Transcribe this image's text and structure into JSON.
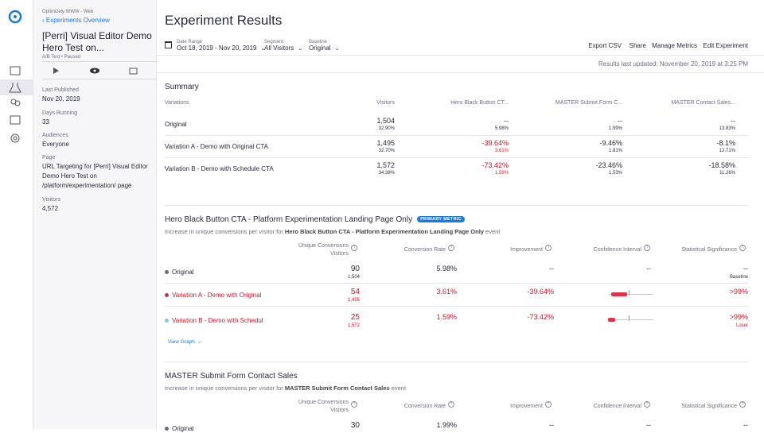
{
  "details": {
    "project": "Optimizely WWW - Web",
    "back_link": "Experiments Overview",
    "title": "[Perri] Visual Editor Demo Hero Test on...",
    "meta": "A/B Test • Paused",
    "fields": [
      {
        "label": "Last Published",
        "value": "Nov 20, 2019"
      },
      {
        "label": "Days Running",
        "value": "33"
      },
      {
        "label": "Audiences",
        "value": "Everyone"
      },
      {
        "label": "Page",
        "value": "URL Targeting for [Perri] Visual Editor Demo Hero Test on /platform/experimentation/ page"
      },
      {
        "label": "Visitors",
        "value": "4,572"
      }
    ]
  },
  "header": {
    "title": "Experiment Results",
    "filters": [
      {
        "label": "Date Range",
        "value": "Oct 18, 2019 - Nov 20, 2019"
      },
      {
        "label": "Segment",
        "value": "All Visitors"
      },
      {
        "label": "Baseline",
        "value": "Original"
      }
    ],
    "actions": [
      "Export CSV",
      "Share",
      "Manage Metrics",
      "Edit Experiment"
    ],
    "updated": "Results last updated: November 20, 2019 at 3:25 PM"
  },
  "summary": {
    "title": "Summary",
    "columns": [
      "Variations",
      "Visitors",
      "Hero Black Button CT...",
      "MASTER Submit Form C...",
      "MASTER Contact Sales..."
    ],
    "rows": [
      {
        "name": "Original",
        "visitors": "1,504",
        "share": "32.90%",
        "metrics": [
          {
            "value": "--",
            "rate": "5.98%"
          },
          {
            "value": "--",
            "rate": "1.99%"
          },
          {
            "value": "--",
            "rate": "13.83%"
          }
        ]
      },
      {
        "name": "Variation A - Demo with Original CTA",
        "visitors": "1,495",
        "share": "32.70%",
        "metrics": [
          {
            "value": "-39.64%",
            "rate": "3.61%"
          },
          {
            "value": "-9.46%",
            "rate": "1.81%"
          },
          {
            "value": "-8.1%",
            "rate": "12.71%"
          }
        ]
      },
      {
        "name": "Variation B - Demo with Schedule CTA",
        "visitors": "1,572",
        "share": "34.38%",
        "metrics": [
          {
            "value": "-73.42%",
            "rate": "1.59%"
          },
          {
            "value": "-23.46%",
            "rate": "1.53%"
          },
          {
            "value": "-18.58%",
            "rate": "11.26%"
          }
        ]
      }
    ]
  },
  "metrics": [
    {
      "title": "Hero Black Button CTA - Platform Experimentation Landing Page Only",
      "badge": "PRIMARY METRIC",
      "description": {
        "prefix": "Increase in unique conversions per visitor for",
        "metric": "Hero Black Button CTA - Platform Experimentation Landing Page Only",
        "suffix": "event"
      },
      "columns": [
        {
          "label": "Unique Conversions",
          "sub": "Visitors"
        },
        {
          "label": "Conversion Rate"
        },
        {
          "label": "Improvement"
        },
        {
          "label": "Confidence Interval"
        },
        {
          "label": "Statistical Significance"
        }
      ],
      "rows": [
        {
          "name": "Original",
          "color": "#6b6b80",
          "conversions": "90",
          "visitors": "1,504",
          "rate": "5.98%",
          "improvement": "--",
          "interval": "--",
          "significance": "--",
          "note": "Baseline"
        },
        {
          "name": "Variation A - Demo with Original",
          "color": "#d6285a",
          "conversions": "54",
          "visitors": "1,495",
          "rate": "3.61%",
          "improvement": "-39.64%",
          "significance": ">99%"
        },
        {
          "name": "Variation B - Demo with Schedul",
          "color": "#7ec8e8",
          "conversions": "25",
          "visitors": "1,572",
          "rate": "1.59%",
          "improvement": "-73.42%",
          "significance": ">99%",
          "note": "Loser"
        }
      ],
      "link": "View Graph"
    },
    {
      "title": "MASTER Submit Form Contact Sales",
      "description": {
        "prefix": "Increase in unique conversions per visitor for",
        "metric": "MASTER Submit Form Contact Sales",
        "suffix": "event"
      },
      "columns": [
        {
          "label": "Unique Conversions",
          "sub": "Visitors"
        },
        {
          "label": "Conversion Rate"
        },
        {
          "label": "Improvement"
        },
        {
          "label": "Confidence Interval"
        },
        {
          "label": "Statistical Significance"
        }
      ],
      "rows": [
        {
          "name": "Original",
          "color": "#6b6b80",
          "conversions": "30",
          "rate": "1.99%",
          "improvement": "--",
          "interval": "--",
          "significance": "--"
        }
      ]
    }
  ]
}
